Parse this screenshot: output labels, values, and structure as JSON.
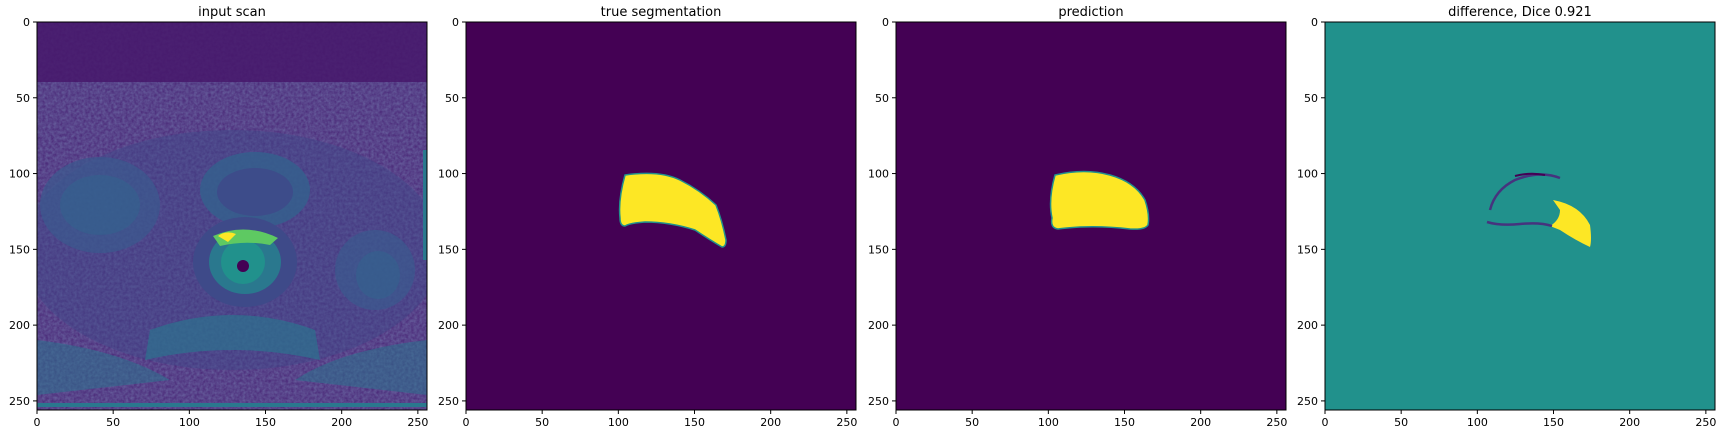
{
  "chart_data": [
    {
      "type": "heatmap",
      "title": "input scan",
      "content": "mri-axial-pelvis-slice",
      "colormap": "viridis",
      "xlim": [
        0,
        256
      ],
      "ylim": [
        256,
        0
      ],
      "xticks": [
        0,
        50,
        100,
        150,
        200,
        250
      ],
      "yticks": [
        0,
        50,
        100,
        150,
        200,
        250
      ]
    },
    {
      "type": "heatmap",
      "title": "true segmentation",
      "content": "binary-mask",
      "colormap": "viridis",
      "xlim": [
        0,
        256
      ],
      "ylim": [
        256,
        0
      ],
      "xticks": [
        0,
        50,
        100,
        150,
        200,
        250
      ],
      "yticks": [
        0,
        50,
        100,
        150,
        200,
        250
      ],
      "mask_extent": {
        "x": [
          104,
          171
        ],
        "y": [
          99,
          148
        ]
      }
    },
    {
      "type": "heatmap",
      "title": "prediction",
      "content": "binary-mask",
      "colormap": "viridis",
      "xlim": [
        0,
        256
      ],
      "ylim": [
        256,
        0
      ],
      "xticks": [
        0,
        50,
        100,
        150,
        200,
        250
      ],
      "yticks": [
        0,
        50,
        100,
        150,
        200,
        250
      ],
      "mask_extent": {
        "x": [
          104,
          165
        ],
        "y": [
          98,
          138
        ]
      }
    },
    {
      "type": "heatmap",
      "title": "difference, Dice 0.921",
      "content": "difference-map",
      "colormap": "viridis",
      "dice": 0.921,
      "xlim": [
        0,
        256
      ],
      "ylim": [
        256,
        0
      ],
      "xticks": [
        0,
        50,
        100,
        150,
        200,
        250
      ],
      "yticks": [
        0,
        50,
        100,
        150,
        200,
        250
      ]
    }
  ],
  "colors": {
    "viridis_min": "#440154",
    "viridis_low": "#3b528b",
    "viridis_mid": "#21918c",
    "viridis_high": "#5ec962",
    "viridis_max": "#fde725"
  }
}
